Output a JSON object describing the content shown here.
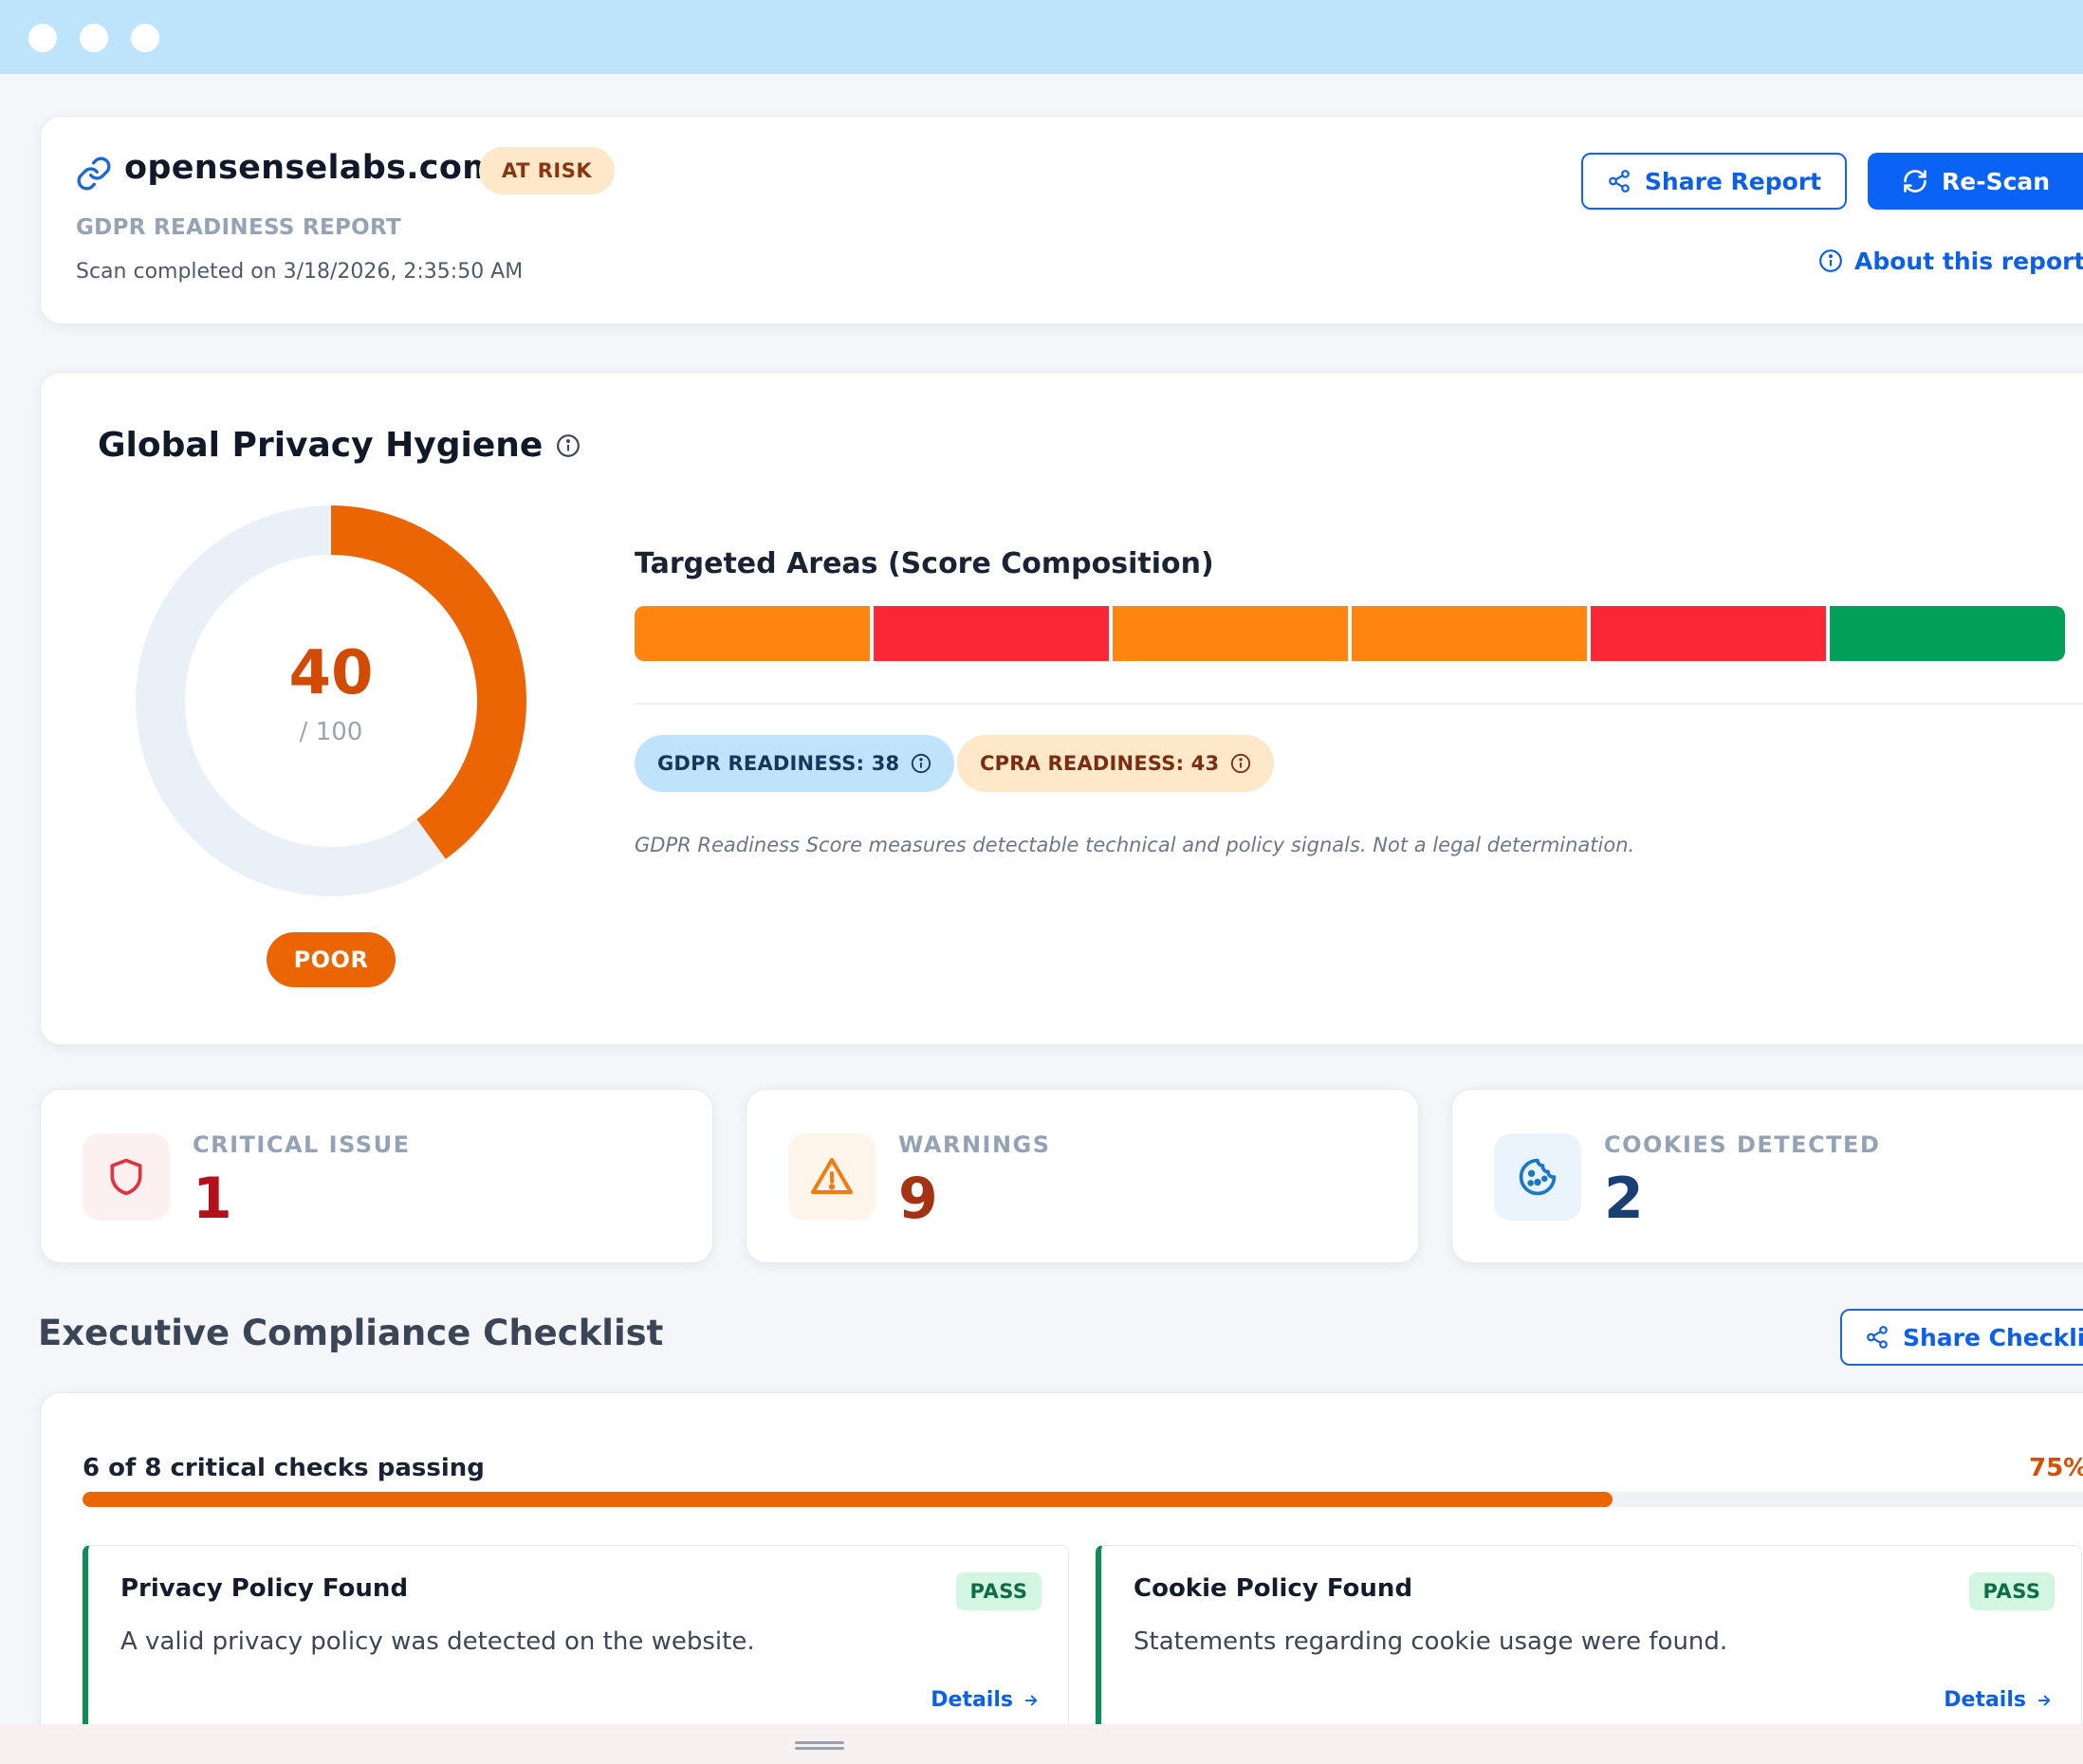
{
  "window": {
    "title_dots": 3
  },
  "header": {
    "site": "opensenselabs.com",
    "status_badge": "AT RISK",
    "report_label": "GDPR READINESS REPORT",
    "scan_completed": "Scan completed on 3/18/2026, 2:35:50 AM",
    "share_label": "Share Report",
    "rescan_label": "Re-Scan",
    "about_label": "About this report"
  },
  "hygiene": {
    "title": "Global Privacy Hygiene",
    "score": "40",
    "score_max": "/ 100",
    "score_fraction": 0.4,
    "rating": "POOR",
    "areas_title": "Targeted Areas (Score Composition)",
    "segments": [
      {
        "color": "#ff8510"
      },
      {
        "color": "#fb2737"
      },
      {
        "color": "#ff8510"
      },
      {
        "color": "#ff8510"
      },
      {
        "color": "#fb2737"
      },
      {
        "color": "#00a05b"
      }
    ],
    "gdpr_pill": "GDPR READINESS: 38",
    "cpra_pill": "CPRA READINESS: 43",
    "disclaimer": "GDPR Readiness Score measures detectable technical and policy signals. Not a legal determination."
  },
  "stats": [
    {
      "label": "CRITICAL ISSUE",
      "value": "1",
      "icon": "shield-icon",
      "color": "#b3101c"
    },
    {
      "label": "WARNINGS",
      "value": "9",
      "icon": "warning-icon",
      "color": "#a63214"
    },
    {
      "label": "COOKIES DETECTED",
      "value": "2",
      "icon": "cookie-icon",
      "color": "#1a3f73"
    }
  ],
  "checklist": {
    "title": "Executive Compliance Checklist",
    "share_label": "Share Checklist",
    "passing_text": "6 of 8 critical checks passing",
    "percent": "75%",
    "progress": 0.75,
    "items": [
      {
        "name": "Privacy Policy Found",
        "status": "PASS",
        "description": "A valid privacy policy was detected on the website.",
        "details": "Details"
      },
      {
        "name": "Cookie Policy Found",
        "status": "PASS",
        "description": "Statements regarding cookie usage were found.",
        "details": "Details"
      }
    ]
  },
  "colors": {
    "accent": "#0b63f6",
    "score": "#ec6504",
    "pass": "#0b8f57"
  }
}
